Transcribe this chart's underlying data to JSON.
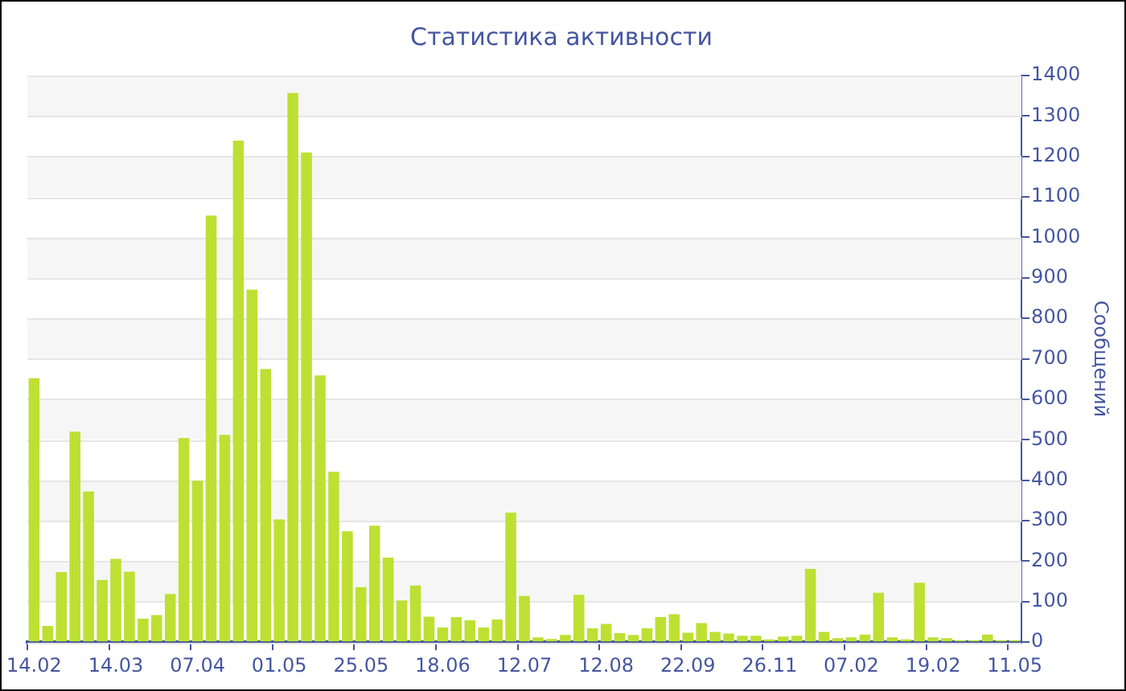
{
  "chart_data": {
    "type": "bar",
    "title": "Статистика активности",
    "ylabel": "Сообщений",
    "categories": [
      "14.02",
      null,
      null,
      null,
      null,
      null,
      "14.03",
      null,
      null,
      null,
      null,
      null,
      "07.04",
      null,
      null,
      null,
      null,
      null,
      "01.05",
      null,
      null,
      null,
      null,
      null,
      "25.05",
      null,
      null,
      null,
      null,
      null,
      "18.06",
      null,
      null,
      null,
      null,
      null,
      "12.07",
      null,
      null,
      null,
      null,
      null,
      "12.08",
      null,
      null,
      null,
      null,
      null,
      "22.09",
      null,
      null,
      null,
      null,
      null,
      "26.11",
      null,
      null,
      null,
      null,
      null,
      "07.02",
      null,
      null,
      null,
      null,
      null,
      "19.02",
      null,
      null,
      null,
      null,
      null,
      "11.05"
    ],
    "values": [
      652,
      40,
      173,
      520,
      372,
      154,
      206,
      174,
      58,
      67,
      119,
      504,
      399,
      1054,
      512,
      1239,
      871,
      675,
      303,
      1357,
      1210,
      659,
      421,
      274,
      136,
      288,
      209,
      103,
      140,
      63,
      36,
      62,
      54,
      36,
      56,
      320,
      114,
      12,
      8,
      18,
      117,
      34,
      45,
      22,
      18,
      34,
      62,
      69,
      23,
      47,
      25,
      21,
      16,
      16,
      7,
      14,
      16,
      181,
      25,
      10,
      12,
      19,
      122,
      12,
      7,
      147,
      12,
      10,
      5,
      5,
      19,
      5,
      5
    ],
    "color": "#bde033",
    "ylim": [
      0,
      1400
    ],
    "yticks": [
      0,
      100,
      200,
      300,
      400,
      500,
      600,
      700,
      800,
      900,
      1000,
      1100,
      1200,
      1300,
      1400
    ],
    "grid": "y"
  }
}
